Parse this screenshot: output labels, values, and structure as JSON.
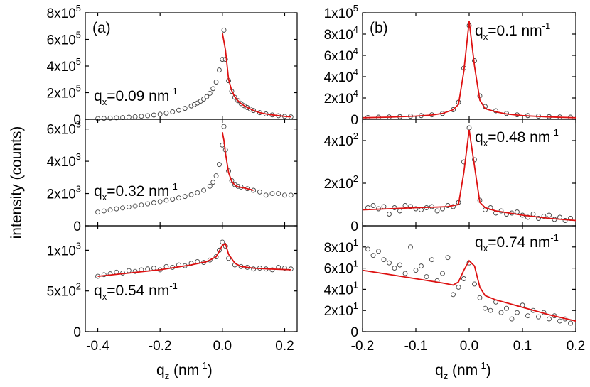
{
  "figure": {
    "ylabel": "intensity (counts)",
    "xlabel_left": {
      "base": "q",
      "sub": "z",
      "rest": " (nm",
      "sup": "-1",
      "close": ")"
    },
    "xlabel_right": {
      "base": "q",
      "sub": "z",
      "rest": " (nm",
      "sup": "-1",
      "close": ")"
    },
    "panel_labels": [
      "(a)",
      "(b)"
    ]
  },
  "colors": {
    "fit_line": "#dd1111",
    "marker_edge": "#444444",
    "axis": "#000000"
  },
  "chart_data": [
    {
      "id": "a1",
      "type": "scatter",
      "column": "a",
      "annotation": {
        "base": "q",
        "sub": "x",
        "text": "=0.09 nm",
        "sup": "-1"
      },
      "xlim": [
        -0.44,
        0.24
      ],
      "ylim": [
        0,
        800000
      ],
      "xticks": [
        -0.4,
        -0.2,
        0.0,
        0.2
      ],
      "yticks": [
        {
          "v": 0,
          "m": "0",
          "e": ""
        },
        {
          "v": 200000,
          "m": "2x10",
          "e": "5"
        },
        {
          "v": 400000,
          "m": "4x10",
          "e": "5"
        },
        {
          "v": 600000,
          "m": "6x10",
          "e": "5"
        },
        {
          "v": 800000,
          "m": "8x10",
          "e": "5"
        }
      ],
      "series": [
        {
          "kind": "points",
          "x": [
            -0.4,
            -0.38,
            -0.36,
            -0.34,
            -0.32,
            -0.3,
            -0.28,
            -0.26,
            -0.24,
            -0.22,
            -0.2,
            -0.18,
            -0.16,
            -0.14,
            -0.12,
            -0.1,
            -0.09,
            -0.08,
            -0.07,
            -0.06,
            -0.05,
            -0.04,
            -0.03,
            -0.02,
            -0.01,
            0.0,
            0.005,
            0.01,
            0.02,
            0.03,
            0.04,
            0.05,
            0.06,
            0.07,
            0.08,
            0.09,
            0.1,
            0.12,
            0.14,
            0.16,
            0.18,
            0.2,
            0.22
          ],
          "y": [
            5000,
            7000,
            9000,
            11000,
            13000,
            16000,
            19000,
            23000,
            27000,
            32000,
            38000,
            46000,
            56000,
            68000,
            82000,
            100000,
            110000,
            122000,
            136000,
            152000,
            170000,
            195000,
            230000,
            280000,
            370000,
            450000,
            670000,
            450000,
            290000,
            210000,
            165000,
            140000,
            118000,
            102000,
            88000,
            76000,
            66000,
            50000,
            40000,
            33000,
            27000,
            22000,
            18000
          ]
        },
        {
          "kind": "fit",
          "x": [
            0.0,
            0.01,
            0.02,
            0.03,
            0.04,
            0.05,
            0.06,
            0.07,
            0.08,
            0.1,
            0.12,
            0.14,
            0.16,
            0.18,
            0.2,
            0.22
          ],
          "y": [
            650000,
            520000,
            300000,
            215000,
            168000,
            140000,
            118000,
            102000,
            88000,
            66000,
            50000,
            40000,
            33000,
            27000,
            22000,
            18000
          ]
        }
      ]
    },
    {
      "id": "a2",
      "type": "scatter",
      "column": "a",
      "annotation": {
        "base": "q",
        "sub": "x",
        "text": "=0.32 nm",
        "sup": "-1"
      },
      "xlim": [
        -0.44,
        0.24
      ],
      "ylim": [
        0,
        6600
      ],
      "xticks": [
        -0.4,
        -0.2,
        0.0,
        0.2
      ],
      "yticks": [
        {
          "v": 0,
          "m": "0",
          "e": ""
        },
        {
          "v": 2000,
          "m": "2x10",
          "e": "3"
        },
        {
          "v": 4000,
          "m": "4x10",
          "e": "3"
        },
        {
          "v": 6000,
          "m": "6x10",
          "e": "3"
        }
      ],
      "series": [
        {
          "kind": "points",
          "x": [
            -0.4,
            -0.38,
            -0.36,
            -0.34,
            -0.32,
            -0.3,
            -0.28,
            -0.26,
            -0.24,
            -0.22,
            -0.2,
            -0.18,
            -0.16,
            -0.14,
            -0.12,
            -0.1,
            -0.08,
            -0.06,
            -0.04,
            -0.03,
            -0.02,
            -0.01,
            0.0,
            0.005,
            0.01,
            0.02,
            0.03,
            0.04,
            0.05,
            0.06,
            0.08,
            0.1,
            0.12,
            0.14,
            0.16,
            0.18,
            0.2,
            0.22
          ],
          "y": [
            850,
            920,
            980,
            1050,
            1110,
            1170,
            1230,
            1290,
            1360,
            1430,
            1500,
            1580,
            1650,
            1730,
            1820,
            1920,
            2050,
            2200,
            2450,
            2700,
            3100,
            3800,
            5000,
            6150,
            4700,
            3400,
            2800,
            2550,
            2450,
            2400,
            2300,
            2200,
            2100,
            1900,
            2000,
            2000,
            1900,
            1900
          ]
        },
        {
          "kind": "fit",
          "x": [
            0.0,
            0.005,
            0.01,
            0.02,
            0.03,
            0.04,
            0.05,
            0.06,
            0.08,
            0.1
          ],
          "y": [
            5800,
            5300,
            4500,
            3300,
            2750,
            2520,
            2420,
            2380,
            2300,
            2200
          ]
        }
      ]
    },
    {
      "id": "a3",
      "type": "scatter",
      "column": "a",
      "annotation": {
        "base": "q",
        "sub": "x",
        "text": "=0.54 nm",
        "sup": "-1"
      },
      "xlim": [
        -0.44,
        0.24
      ],
      "ylim": [
        0,
        1300
      ],
      "xticks": [
        -0.4,
        -0.2,
        0.0,
        0.2
      ],
      "yticks": [
        {
          "v": 0,
          "m": "0",
          "e": ""
        },
        {
          "v": 500,
          "m": "5x10",
          "e": "2"
        },
        {
          "v": 1000,
          "m": "1x10",
          "e": "3"
        }
      ],
      "series": [
        {
          "kind": "points",
          "x": [
            -0.4,
            -0.38,
            -0.36,
            -0.34,
            -0.32,
            -0.3,
            -0.28,
            -0.26,
            -0.24,
            -0.22,
            -0.2,
            -0.18,
            -0.16,
            -0.14,
            -0.12,
            -0.1,
            -0.08,
            -0.06,
            -0.04,
            -0.02,
            -0.01,
            0.0,
            0.01,
            0.02,
            0.04,
            0.06,
            0.08,
            0.1,
            0.12,
            0.14,
            0.16,
            0.18,
            0.2,
            0.22
          ],
          "y": [
            680,
            700,
            710,
            730,
            720,
            750,
            740,
            760,
            770,
            780,
            760,
            800,
            790,
            820,
            810,
            840,
            860,
            850,
            880,
            920,
            1000,
            1100,
            1050,
            900,
            820,
            800,
            790,
            770,
            780,
            770,
            760,
            790,
            780,
            770
          ]
        },
        {
          "kind": "fit",
          "x": [
            -0.4,
            -0.3,
            -0.2,
            -0.1,
            -0.05,
            -0.02,
            0.0,
            0.01,
            0.02,
            0.04,
            0.06,
            0.1,
            0.15,
            0.22
          ],
          "y": [
            680,
            720,
            760,
            820,
            860,
            920,
            1060,
            1080,
            950,
            840,
            800,
            780,
            770,
            760
          ]
        }
      ]
    },
    {
      "id": "b1",
      "type": "scatter",
      "column": "b",
      "annotation": {
        "base": "q",
        "sub": "x",
        "text": "=0.1 nm",
        "sup": "-1"
      },
      "xlim": [
        -0.2,
        0.2
      ],
      "ylim": [
        0,
        100000
      ],
      "xticks": [
        -0.2,
        -0.1,
        0.0,
        0.1,
        0.2
      ],
      "yticks": [
        {
          "v": 0,
          "m": "0",
          "e": ""
        },
        {
          "v": 20000,
          "m": "2x10",
          "e": "4"
        },
        {
          "v": 40000,
          "m": "4x10",
          "e": "4"
        },
        {
          "v": 60000,
          "m": "6x10",
          "e": "4"
        },
        {
          "v": 80000,
          "m": "8x10",
          "e": "4"
        },
        {
          "v": 100000,
          "m": "1x10",
          "e": "5"
        }
      ],
      "series": [
        {
          "kind": "points",
          "x": [
            -0.19,
            -0.17,
            -0.15,
            -0.13,
            -0.11,
            -0.09,
            -0.07,
            -0.05,
            -0.03,
            -0.02,
            -0.01,
            0.0,
            0.01,
            0.02,
            0.03,
            0.05,
            0.07,
            0.09,
            0.11,
            0.13,
            0.15,
            0.17,
            0.19
          ],
          "y": [
            1800,
            2000,
            2200,
            2500,
            3000,
            3500,
            4200,
            5500,
            9000,
            16000,
            48000,
            88000,
            55000,
            22000,
            12000,
            8000,
            5500,
            4200,
            3500,
            3000,
            2500,
            2200,
            2000
          ]
        },
        {
          "kind": "fit",
          "x": [
            -0.2,
            -0.15,
            -0.1,
            -0.07,
            -0.05,
            -0.03,
            -0.02,
            -0.01,
            0.0,
            0.01,
            0.02,
            0.03,
            0.05,
            0.07,
            0.1,
            0.15,
            0.2
          ],
          "y": [
            1500,
            2000,
            3000,
            4000,
            5500,
            9000,
            14000,
            45000,
            92000,
            50000,
            18000,
            10000,
            7000,
            5000,
            3500,
            2200,
            1500
          ]
        }
      ]
    },
    {
      "id": "b2",
      "type": "scatter",
      "column": "b",
      "annotation": {
        "base": "q",
        "sub": "x",
        "text": "=0.48 nm",
        "sup": "-1"
      },
      "xlim": [
        -0.2,
        0.2
      ],
      "ylim": [
        0,
        500
      ],
      "xticks": [
        -0.2,
        -0.1,
        0.0,
        0.1,
        0.2
      ],
      "yticks": [
        {
          "v": 0,
          "m": "0",
          "e": ""
        },
        {
          "v": 200,
          "m": "2x10",
          "e": "2"
        },
        {
          "v": 400,
          "m": "4x10",
          "e": "2"
        }
      ],
      "series": [
        {
          "kind": "points",
          "x": [
            -0.19,
            -0.18,
            -0.17,
            -0.16,
            -0.15,
            -0.14,
            -0.13,
            -0.12,
            -0.11,
            -0.1,
            -0.09,
            -0.08,
            -0.07,
            -0.06,
            -0.05,
            -0.04,
            -0.03,
            -0.02,
            -0.01,
            0.0,
            0.01,
            0.02,
            0.03,
            0.04,
            0.05,
            0.06,
            0.07,
            0.08,
            0.09,
            0.1,
            0.11,
            0.12,
            0.13,
            0.14,
            0.15,
            0.16,
            0.17,
            0.18,
            0.19
          ],
          "y": [
            85,
            95,
            80,
            90,
            55,
            85,
            70,
            95,
            90,
            80,
            75,
            85,
            90,
            70,
            80,
            95,
            90,
            110,
            300,
            460,
            310,
            120,
            75,
            85,
            60,
            70,
            55,
            60,
            65,
            50,
            40,
            55,
            35,
            45,
            50,
            30,
            40,
            25,
            35
          ]
        },
        {
          "kind": "fit",
          "x": [
            -0.2,
            -0.15,
            -0.1,
            -0.06,
            -0.04,
            -0.02,
            -0.01,
            0.0,
            0.01,
            0.02,
            0.03,
            0.05,
            0.1,
            0.15,
            0.2
          ],
          "y": [
            75,
            80,
            85,
            88,
            90,
            100,
            250,
            450,
            280,
            110,
            85,
            70,
            50,
            35,
            25
          ]
        }
      ]
    },
    {
      "id": "b3",
      "type": "scatter",
      "column": "b",
      "annotation": {
        "base": "q",
        "sub": "x",
        "text": "=0.74 nm",
        "sup": "-1"
      },
      "xlim": [
        -0.2,
        0.2
      ],
      "ylim": [
        0,
        100
      ],
      "xticks": [
        -0.2,
        -0.1,
        0.0,
        0.1,
        0.2
      ],
      "yticks": [
        {
          "v": 0,
          "m": "0",
          "e": ""
        },
        {
          "v": 20,
          "m": "2x10",
          "e": "1"
        },
        {
          "v": 40,
          "m": "4x10",
          "e": "1"
        },
        {
          "v": 60,
          "m": "6x10",
          "e": "1"
        },
        {
          "v": 80,
          "m": "8x10",
          "e": "1"
        }
      ],
      "series": [
        {
          "kind": "points",
          "x": [
            -0.19,
            -0.18,
            -0.17,
            -0.16,
            -0.15,
            -0.14,
            -0.13,
            -0.12,
            -0.11,
            -0.1,
            -0.09,
            -0.08,
            -0.07,
            -0.06,
            -0.05,
            -0.04,
            -0.03,
            -0.02,
            -0.01,
            0.0,
            0.01,
            0.02,
            0.03,
            0.04,
            0.05,
            0.06,
            0.07,
            0.08,
            0.09,
            0.1,
            0.11,
            0.12,
            0.13,
            0.14,
            0.15,
            0.16,
            0.17,
            0.18,
            0.19
          ],
          "y": [
            78,
            72,
            76,
            68,
            65,
            60,
            63,
            55,
            80,
            58,
            62,
            52,
            68,
            48,
            55,
            70,
            35,
            42,
            50,
            65,
            45,
            32,
            22,
            20,
            28,
            18,
            22,
            12,
            18,
            25,
            15,
            20,
            14,
            18,
            12,
            15,
            10,
            12,
            8
          ]
        },
        {
          "kind": "fit",
          "x": [
            -0.2,
            -0.15,
            -0.1,
            -0.05,
            -0.03,
            -0.02,
            -0.01,
            0.0,
            0.01,
            0.02,
            0.03,
            0.05,
            0.1,
            0.15,
            0.2
          ],
          "y": [
            58,
            54,
            50,
            46,
            44,
            47,
            58,
            67,
            62,
            42,
            34,
            30,
            23,
            16,
            10
          ]
        }
      ]
    }
  ]
}
